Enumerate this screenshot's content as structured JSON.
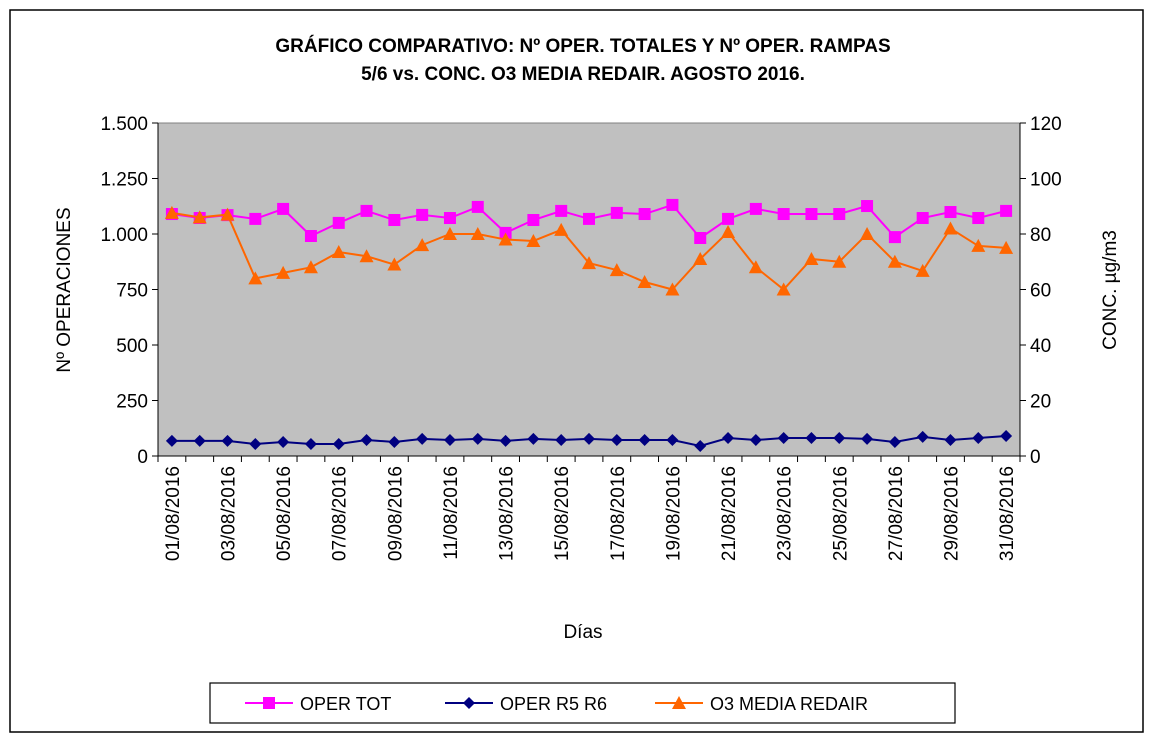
{
  "chart_data": {
    "type": "line",
    "title": [
      "GRÁFICO COMPARATIVO:  Nº OPER. TOTALES Y Nº OPER. RAMPAS",
      "5/6 vs. CONC. O3 MEDIA REDAIR.  AGOSTO 2016."
    ],
    "x_label": "Días",
    "y_label": "Nº OPERACIONES",
    "y2_label": "CONC.  µg/m3",
    "categories": [
      "01/08/2016",
      null,
      "03/08/2016",
      null,
      "05/08/2016",
      null,
      "07/08/2016",
      null,
      "09/08/2016",
      null,
      "11/08/2016",
      null,
      "13/08/2016",
      null,
      "15/08/2016",
      null,
      "17/08/2016",
      null,
      "19/08/2016",
      null,
      "21/08/2016",
      null,
      "23/08/2016",
      null,
      "25/08/2016",
      null,
      "27/08/2016",
      null,
      "29/08/2016",
      null,
      "31/08/2016"
    ],
    "ylim": [
      0,
      1500
    ],
    "yticks": [
      0,
      250,
      500,
      750,
      {
        "value": 1000,
        "label": "1.000"
      },
      {
        "value": 1250,
        "label": "1.250"
      },
      {
        "value": 1500,
        "label": "1.500"
      }
    ],
    "y2lim": [
      0,
      120
    ],
    "y2ticks": [
      0,
      20,
      40,
      60,
      80,
      100,
      120
    ],
    "grid": false,
    "plot_background": "#c0c0c0",
    "legend": "bottom",
    "series": [
      {
        "name": "OPER TOT",
        "color": "#ff00ff",
        "marker": "square",
        "values": [
          1090,
          1072,
          1085,
          1068,
          1113,
          991,
          1050,
          1104,
          1063,
          1086,
          1072,
          1122,
          1005,
          1063,
          1104,
          1068,
          1095,
          1090,
          1131,
          982,
          1068,
          1113,
          1090,
          1090,
          1090,
          1126,
          986,
          1072,
          1099,
          1072,
          1104
        ]
      },
      {
        "name": "OPER R5 R6",
        "color": "#000080",
        "marker": "diamond",
        "values": [
          68,
          68,
          68,
          54,
          63,
          54,
          54,
          72,
          63,
          77,
          72,
          77,
          68,
          77,
          72,
          77,
          72,
          72,
          72,
          45,
          81,
          72,
          81,
          81,
          81,
          77,
          63,
          86,
          72,
          81,
          90
        ]
      },
      {
        "name": "O3 MEDIA REDAIR",
        "color": "#ff6600",
        "marker": "triangle",
        "axis": "y2",
        "values": [
          87.6,
          86,
          87,
          64,
          66,
          68,
          73.5,
          72,
          69,
          76,
          80,
          80,
          78,
          77.5,
          81.5,
          69.5,
          67,
          62.7,
          60,
          71,
          80.7,
          68,
          60,
          71,
          70,
          80,
          70,
          66.7,
          82,
          75.7,
          75
        ]
      }
    ]
  }
}
